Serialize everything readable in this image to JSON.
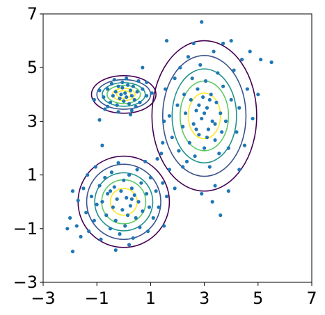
{
  "chart_data": {
    "type": "scatter",
    "title": "",
    "xlabel": "",
    "ylabel": "",
    "xlim": [
      -3,
      7
    ],
    "ylim": [
      -3,
      7
    ],
    "grid": false,
    "x_ticks": [
      -3,
      -1,
      1,
      3,
      5,
      7
    ],
    "y_ticks": [
      -3,
      -1,
      1,
      3,
      5,
      7
    ],
    "x_tick_labels": [
      "−3",
      "−1",
      "1",
      "3",
      "5",
      "7"
    ],
    "y_tick_labels": [
      "−3",
      "−1",
      "1",
      "3",
      "5",
      "7"
    ],
    "point_color": "#1f77b4",
    "contour_colors": [
      "#440154",
      "#3b528b",
      "#21918c",
      "#5ec962",
      "#fde725"
    ],
    "clusters": [
      {
        "center": [
          0.0,
          4.0
        ],
        "spread": [
          0.3,
          0.3
        ],
        "contour_radii": [
          [
            1.2,
            0.7
          ],
          [
            1.0,
            0.55
          ],
          [
            0.8,
            0.44
          ],
          [
            0.62,
            0.34
          ],
          [
            0.42,
            0.23
          ],
          [
            0.26,
            0.14
          ]
        ],
        "points": [
          [
            -0.9,
            4.15
          ],
          [
            -0.75,
            3.9
          ],
          [
            -0.6,
            4.2
          ],
          [
            -0.5,
            3.7
          ],
          [
            -0.45,
            4.4
          ],
          [
            -0.4,
            3.95
          ],
          [
            -0.3,
            4.1
          ],
          [
            -0.25,
            3.6
          ],
          [
            -0.2,
            4.3
          ],
          [
            -0.15,
            3.85
          ],
          [
            -0.1,
            4.0
          ],
          [
            -0.05,
            4.25
          ],
          [
            0.0,
            3.75
          ],
          [
            0.05,
            4.05
          ],
          [
            0.1,
            3.9
          ],
          [
            0.15,
            4.35
          ],
          [
            0.2,
            3.65
          ],
          [
            0.25,
            4.15
          ],
          [
            0.3,
            3.95
          ],
          [
            0.35,
            4.3
          ],
          [
            0.4,
            3.8
          ],
          [
            0.5,
            4.1
          ],
          [
            0.6,
            3.7
          ],
          [
            0.7,
            4.2
          ],
          [
            0.85,
            3.95
          ],
          [
            -0.7,
            3.45
          ],
          [
            -0.35,
            4.55
          ],
          [
            0.3,
            3.4
          ],
          [
            0.55,
            4.5
          ],
          [
            -1.1,
            3.8
          ],
          [
            1.05,
            4.05
          ],
          [
            -0.2,
            3.35
          ],
          [
            0.1,
            4.6
          ],
          [
            0.7,
            5.0
          ],
          [
            -0.6,
            3.55
          ],
          [
            0.85,
            4.45
          ],
          [
            -0.9,
            3.05
          ],
          [
            0.45,
            3.55
          ],
          [
            -0.05,
            4.45
          ],
          [
            0.25,
            3.25
          ]
        ]
      },
      {
        "center": [
          3.0,
          3.2
        ],
        "spread": [
          0.6,
          0.9
        ],
        "contour_radii": [
          [
            1.95,
            2.8
          ],
          [
            1.55,
            2.25
          ],
          [
            1.2,
            1.75
          ],
          [
            0.9,
            1.3
          ],
          [
            0.6,
            0.85
          ]
        ],
        "points": [
          [
            1.55,
            4.2
          ],
          [
            1.7,
            3.2
          ],
          [
            1.8,
            2.4
          ],
          [
            1.9,
            4.6
          ],
          [
            2.0,
            3.6
          ],
          [
            2.05,
            1.9
          ],
          [
            2.1,
            5.0
          ],
          [
            2.2,
            2.8
          ],
          [
            2.25,
            4.0
          ],
          [
            2.3,
            3.3
          ],
          [
            2.35,
            1.5
          ],
          [
            2.4,
            5.4
          ],
          [
            2.45,
            2.2
          ],
          [
            2.5,
            3.8
          ],
          [
            2.55,
            4.6
          ],
          [
            2.6,
            2.9
          ],
          [
            2.65,
            1.7
          ],
          [
            2.7,
            3.4
          ],
          [
            2.75,
            4.2
          ],
          [
            2.8,
            2.5
          ],
          [
            2.85,
            5.1
          ],
          [
            2.9,
            3.1
          ],
          [
            2.95,
            3.9
          ],
          [
            3.0,
            2.0
          ],
          [
            3.05,
            4.5
          ],
          [
            3.1,
            3.5
          ],
          [
            3.15,
            2.7
          ],
          [
            3.2,
            1.3
          ],
          [
            3.25,
            4.0
          ],
          [
            3.3,
            3.0
          ],
          [
            3.35,
            5.6
          ],
          [
            3.4,
            2.3
          ],
          [
            3.45,
            3.7
          ],
          [
            3.5,
            4.8
          ],
          [
            3.55,
            1.8
          ],
          [
            3.6,
            3.3
          ],
          [
            3.65,
            2.6
          ],
          [
            3.7,
            4.3
          ],
          [
            3.8,
            3.0
          ],
          [
            3.9,
            2.0
          ],
          [
            4.0,
            3.8
          ],
          [
            4.1,
            4.9
          ],
          [
            4.2,
            2.6
          ],
          [
            4.3,
            3.5
          ],
          [
            4.4,
            5.3
          ],
          [
            4.5,
            2.1
          ],
          [
            4.6,
            4.2
          ],
          [
            4.8,
            3.1
          ],
          [
            5.0,
            4.0
          ],
          [
            5.1,
            5.3
          ],
          [
            5.5,
            5.2
          ],
          [
            4.7,
            5.6
          ],
          [
            4.3,
            1.2
          ],
          [
            3.9,
            0.4
          ],
          [
            3.4,
            0.6
          ],
          [
            2.9,
            0.3
          ],
          [
            3.6,
            -0.5
          ],
          [
            3.3,
            0.0
          ],
          [
            2.2,
            1.3
          ],
          [
            1.6,
            6.0
          ],
          [
            2.9,
            6.7
          ],
          [
            4.0,
            6.0
          ],
          [
            3.7,
            5.9
          ],
          [
            1.5,
            3.0
          ],
          [
            1.45,
            2.2
          ],
          [
            2.6,
            5.9
          ],
          [
            3.0,
            3.3
          ],
          [
            3.2,
            3.8
          ],
          [
            2.8,
            3.6
          ],
          [
            3.4,
            2.9
          ],
          [
            2.7,
            2.7
          ],
          [
            3.1,
            2.4
          ]
        ]
      },
      {
        "center": [
          0.0,
          0.0
        ],
        "spread": [
          0.5,
          0.5
        ],
        "contour_radii": [
          [
            1.7,
            1.7
          ],
          [
            1.38,
            1.4
          ],
          [
            1.08,
            1.08
          ],
          [
            0.82,
            0.82
          ],
          [
            0.5,
            0.5
          ]
        ],
        "points": [
          [
            -2.0,
            -0.6
          ],
          [
            -1.9,
            -1.85
          ],
          [
            -1.75,
            -0.9
          ],
          [
            -1.7,
            0.05
          ],
          [
            -1.6,
            -1.3
          ],
          [
            -1.5,
            0.5
          ],
          [
            -1.4,
            -0.4
          ],
          [
            -1.35,
            1.0
          ],
          [
            -1.3,
            -1.1
          ],
          [
            -1.2,
            0.2
          ],
          [
            -1.1,
            -0.7
          ],
          [
            -1.05,
            1.3
          ],
          [
            -1.0,
            -0.1
          ],
          [
            -0.9,
            0.6
          ],
          [
            -0.85,
            -1.4
          ],
          [
            -0.8,
            0.0
          ],
          [
            -0.7,
            0.9
          ],
          [
            -0.65,
            -0.5
          ],
          [
            -0.6,
            0.3
          ],
          [
            -0.5,
            -1.0
          ],
          [
            -0.45,
            1.1
          ],
          [
            -0.4,
            -0.2
          ],
          [
            -0.35,
            0.55
          ],
          [
            -0.3,
            -0.7
          ],
          [
            -0.25,
            0.1
          ],
          [
            -0.2,
            1.45
          ],
          [
            -0.15,
            -1.2
          ],
          [
            -0.1,
            0.4
          ],
          [
            -0.05,
            -0.3
          ],
          [
            0.0,
            0.8
          ],
          [
            0.05,
            -0.9
          ],
          [
            0.1,
            0.15
          ],
          [
            0.15,
            -0.5
          ],
          [
            0.2,
            1.0
          ],
          [
            0.25,
            -0.15
          ],
          [
            0.3,
            0.5
          ],
          [
            0.35,
            -1.35
          ],
          [
            0.4,
            0.25
          ],
          [
            0.45,
            -0.6
          ],
          [
            0.5,
            1.2
          ],
          [
            0.55,
            0.0
          ],
          [
            0.6,
            -0.95
          ],
          [
            0.65,
            0.7
          ],
          [
            0.7,
            -0.35
          ],
          [
            0.8,
            1.5
          ],
          [
            0.85,
            0.3
          ],
          [
            0.9,
            -1.1
          ],
          [
            0.95,
            -0.2
          ],
          [
            1.0,
            0.9
          ],
          [
            1.1,
            -0.6
          ],
          [
            1.2,
            0.4
          ],
          [
            1.25,
            1.6
          ],
          [
            1.3,
            -0.2
          ],
          [
            1.45,
            0.7
          ],
          [
            1.5,
            -0.9
          ],
          [
            1.6,
            0.2
          ],
          [
            1.7,
            1.2
          ],
          [
            -0.8,
            2.1
          ],
          [
            1.4,
            1.8
          ],
          [
            -0.3,
            -1.8
          ],
          [
            0.2,
            -1.6
          ],
          [
            -1.9,
            0.4
          ],
          [
            -2.1,
            -1.0
          ],
          [
            1.9,
            0.5
          ],
          [
            -0.5,
            0.4
          ],
          [
            0.3,
            0.1
          ]
        ]
      }
    ]
  }
}
